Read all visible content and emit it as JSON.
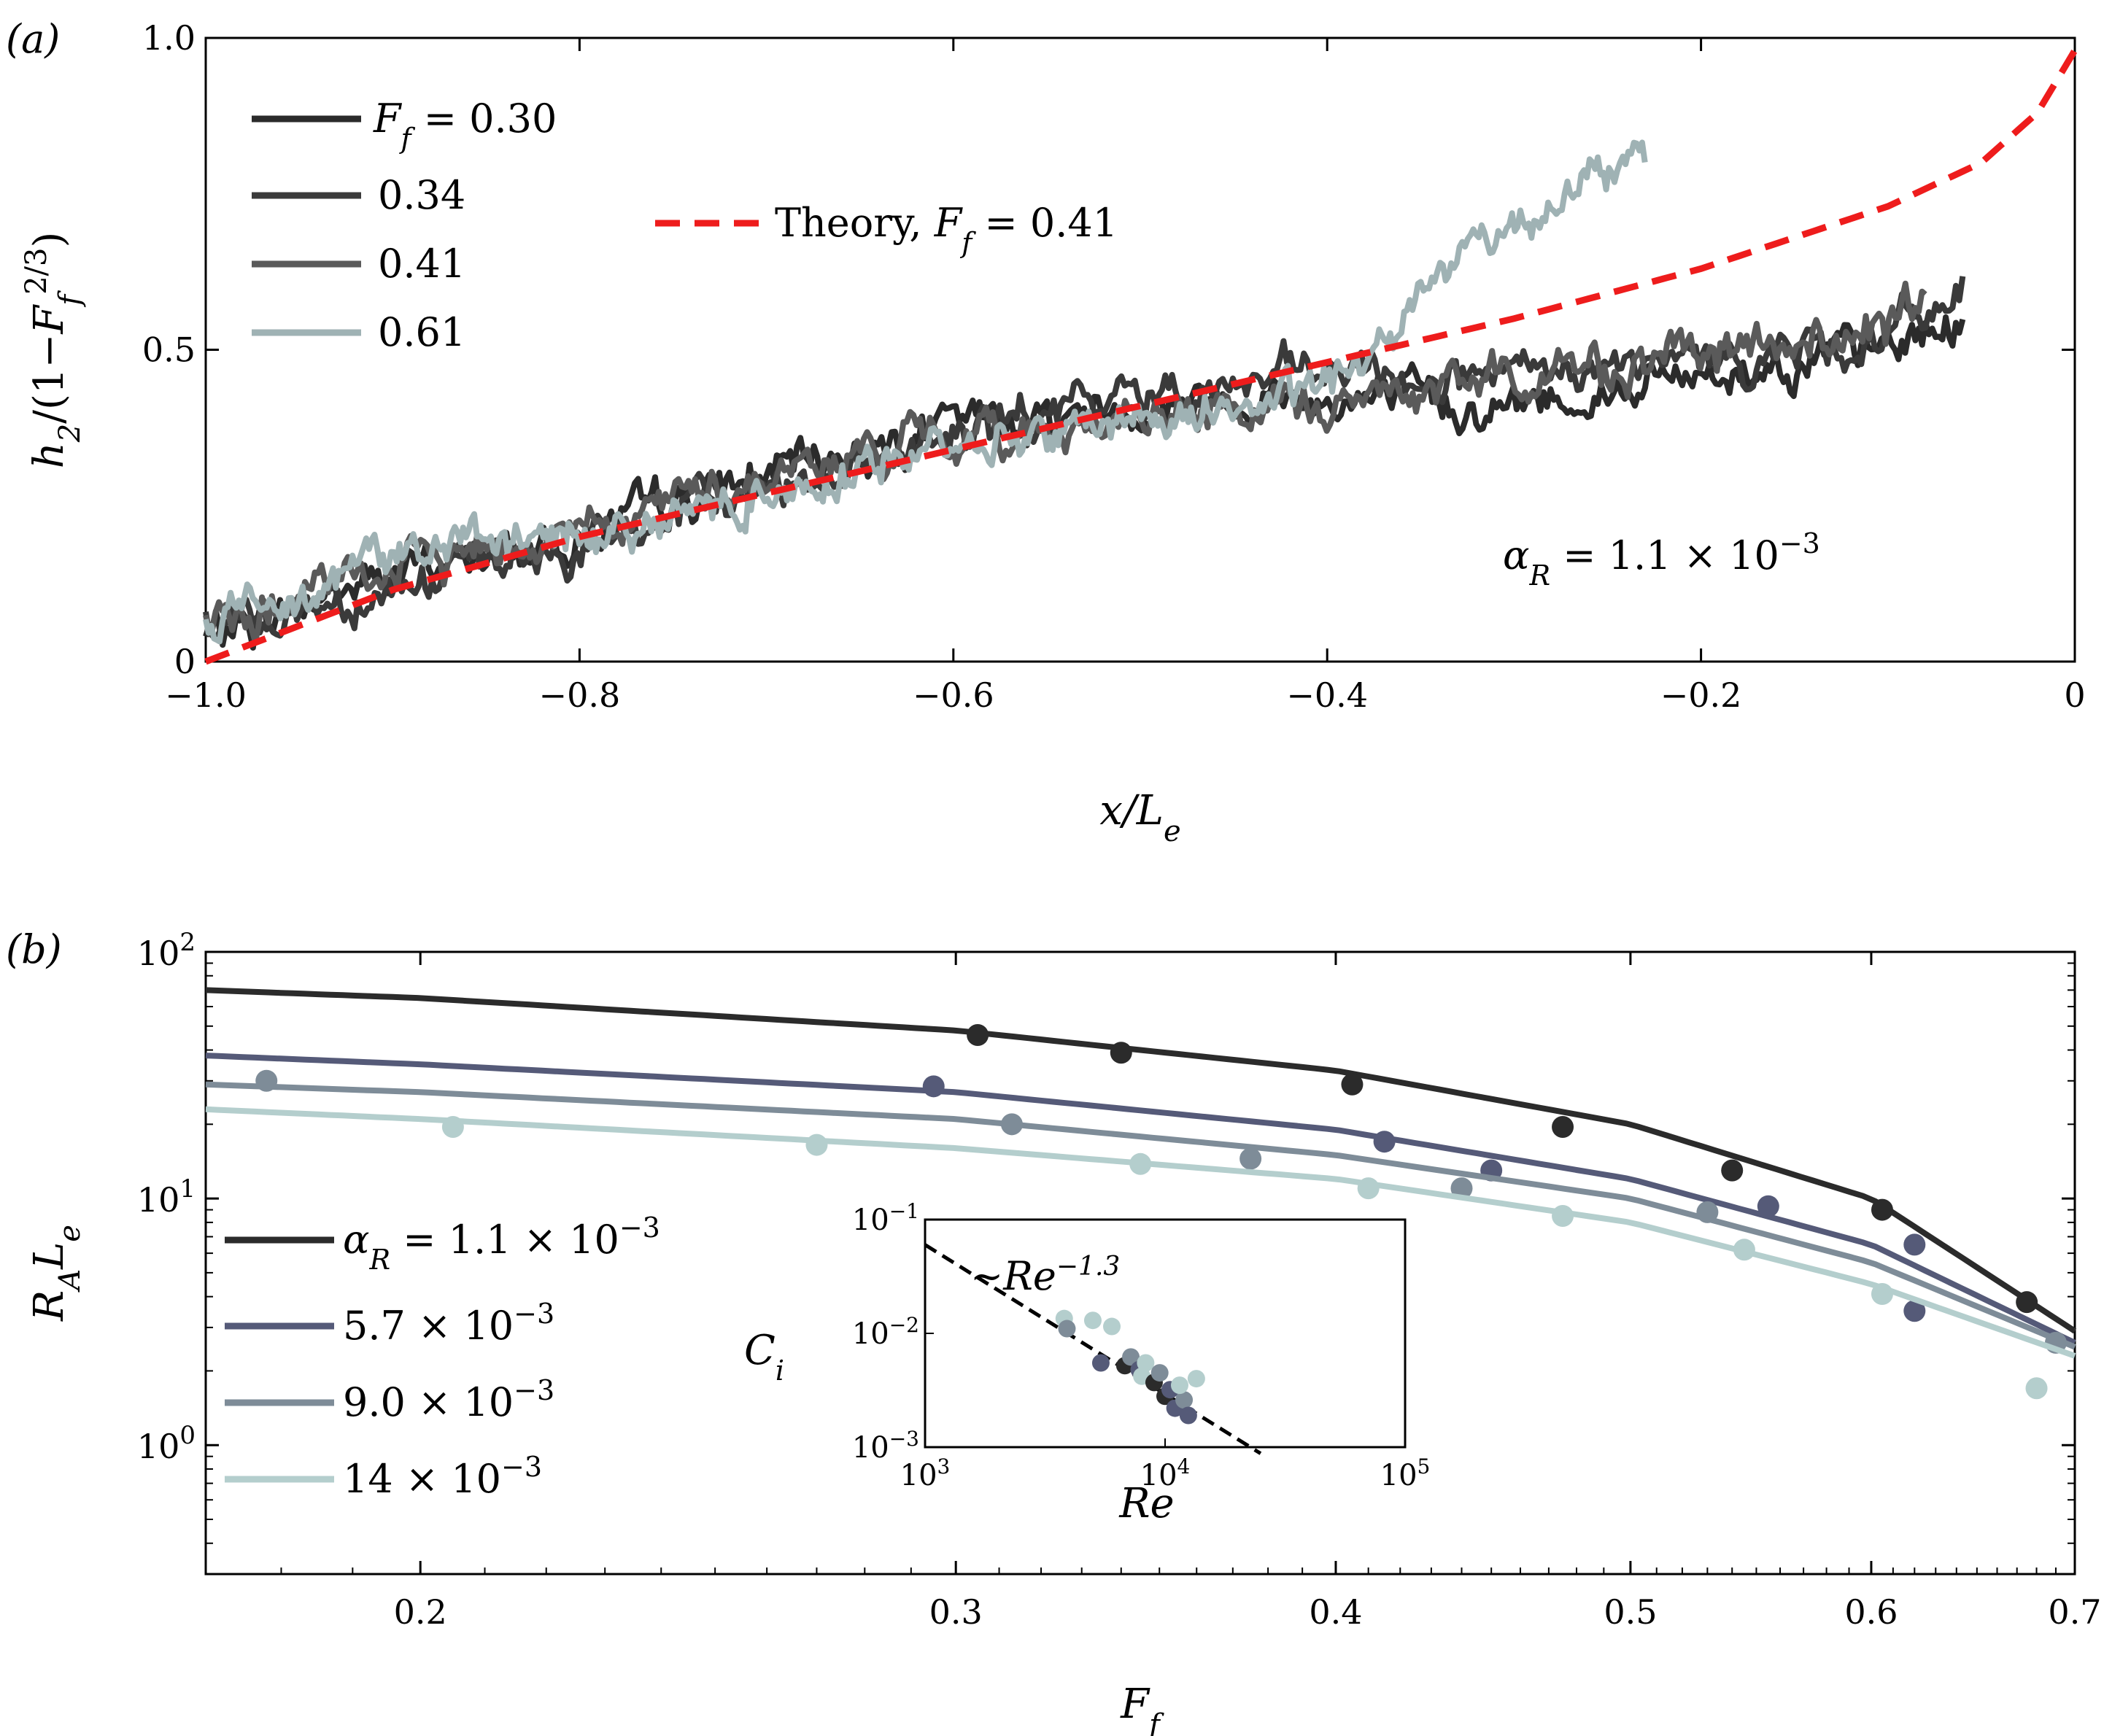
{
  "chart_data": [
    {
      "panel_label": "(a)",
      "type": "line",
      "xlabel": "x/L_e",
      "ylabel": "h_2/(1−F_f^{2/3})",
      "xlim": [
        -1.0,
        0.0
      ],
      "ylim": [
        0.0,
        1.0
      ],
      "xticks": [
        -1.0,
        -0.8,
        -0.6,
        -0.4,
        -0.2,
        0
      ],
      "xtick_labels": [
        "−1.0",
        "−0.8",
        "−0.6",
        "−0.4",
        "−0.2",
        "0"
      ],
      "yticks": [
        0,
        0.5,
        1.0
      ],
      "ytick_labels": [
        "0",
        "0.5",
        "1.0"
      ],
      "legend_title_prefix": "F_f = ",
      "annotation": "α_R = 1.1 × 10^−3",
      "series": [
        {
          "name": "F_f = 0.30",
          "legend": "0.30",
          "color": "#2b2b2b",
          "noise": 0.022,
          "points": [
            [
              -1.0,
              0.04
            ],
            [
              -0.9,
              0.14
            ],
            [
              -0.8,
              0.2
            ],
            [
              -0.7,
              0.3
            ],
            [
              -0.6,
              0.38
            ],
            [
              -0.5,
              0.41
            ],
            [
              -0.45,
              0.43
            ],
            [
              -0.4,
              0.42
            ],
            [
              -0.3,
              0.41
            ],
            [
              -0.2,
              0.46
            ],
            [
              -0.1,
              0.5
            ],
            [
              -0.06,
              0.55
            ]
          ]
        },
        {
          "name": "F_f = 0.34",
          "legend": "0.34",
          "color": "#3a3a3a",
          "noise": 0.022,
          "points": [
            [
              -1.0,
              0.05
            ],
            [
              -0.9,
              0.12
            ],
            [
              -0.8,
              0.18
            ],
            [
              -0.7,
              0.28
            ],
            [
              -0.6,
              0.36
            ],
            [
              -0.5,
              0.43
            ],
            [
              -0.4,
              0.46
            ],
            [
              -0.3,
              0.45
            ],
            [
              -0.2,
              0.48
            ],
            [
              -0.1,
              0.52
            ],
            [
              -0.06,
              0.6
            ]
          ]
        },
        {
          "name": "F_f = 0.41",
          "legend": "0.41",
          "color": "#5a5a5a",
          "noise": 0.022,
          "points": [
            [
              -1.0,
              0.05
            ],
            [
              -0.9,
              0.15
            ],
            [
              -0.8,
              0.22
            ],
            [
              -0.7,
              0.3
            ],
            [
              -0.6,
              0.36
            ],
            [
              -0.5,
              0.39
            ],
            [
              -0.4,
              0.41
            ],
            [
              -0.3,
              0.46
            ],
            [
              -0.2,
              0.49
            ],
            [
              -0.1,
              0.53
            ],
            [
              -0.08,
              0.58
            ]
          ]
        },
        {
          "name": "F_f = 0.61",
          "legend": "0.61",
          "color": "#9fb2b4",
          "noise": 0.02,
          "points": [
            [
              -1.0,
              0.06
            ],
            [
              -0.9,
              0.18
            ],
            [
              -0.8,
              0.2
            ],
            [
              -0.7,
              0.27
            ],
            [
              -0.6,
              0.35
            ],
            [
              -0.5,
              0.39
            ],
            [
              -0.42,
              0.42
            ],
            [
              -0.38,
              0.48
            ],
            [
              -0.35,
              0.6
            ],
            [
              -0.32,
              0.68
            ],
            [
              -0.3,
              0.7
            ],
            [
              -0.27,
              0.76
            ],
            [
              -0.23,
              0.8
            ]
          ]
        },
        {
          "name": "Theory, F_f = 0.41",
          "color": "#ee1c1c",
          "dashed": true,
          "points": [
            [
              -1.0,
              0.0
            ],
            [
              -0.9,
              0.115
            ],
            [
              -0.8,
              0.2
            ],
            [
              -0.7,
              0.27
            ],
            [
              -0.6,
              0.34
            ],
            [
              -0.5,
              0.41
            ],
            [
              -0.4,
              0.48
            ],
            [
              -0.3,
              0.55
            ],
            [
              -0.2,
              0.63
            ],
            [
              -0.1,
              0.73
            ],
            [
              -0.05,
              0.8
            ],
            [
              -0.02,
              0.88
            ],
            [
              0.0,
              0.98
            ]
          ]
        }
      ]
    },
    {
      "panel_label": "(b)",
      "type": "scatter",
      "xscale": "log",
      "yscale": "log",
      "xlabel": "F_f",
      "ylabel": "R_A L_e",
      "xlim": [
        0.17,
        0.7
      ],
      "ylim": [
        0.3,
        100
      ],
      "xticks": [
        0.2,
        0.3,
        0.4,
        0.5,
        0.6,
        0.7
      ],
      "xtick_labels": [
        "0.2",
        "0.3",
        "0.4",
        "0.5",
        "0.6",
        "0.7"
      ],
      "yticks": [
        1,
        10,
        100
      ],
      "ytick_labels": [
        "10^0",
        "10^1",
        "10^2"
      ],
      "series": [
        {
          "name": "α_R = 1.1 × 10^−3",
          "color": "#2b2b2b",
          "curve": [
            [
              0.17,
              70
            ],
            [
              0.2,
              65
            ],
            [
              0.3,
              48
            ],
            [
              0.4,
              33
            ],
            [
              0.5,
              20
            ],
            [
              0.6,
              10
            ],
            [
              0.7,
              2.9
            ]
          ],
          "points": [
            [
              0.305,
              46
            ],
            [
              0.34,
              39
            ],
            [
              0.405,
              29
            ],
            [
              0.475,
              19.5
            ],
            [
              0.54,
              13
            ],
            [
              0.605,
              9
            ],
            [
              0.675,
              3.8
            ]
          ]
        },
        {
          "name": "5.7 × 10^−3",
          "color": "#555a78",
          "curve": [
            [
              0.17,
              38
            ],
            [
              0.2,
              35
            ],
            [
              0.3,
              27
            ],
            [
              0.4,
              19
            ],
            [
              0.5,
              12
            ],
            [
              0.6,
              6.5
            ],
            [
              0.7,
              2.6
            ]
          ],
          "points": [
            [
              0.295,
              28.5
            ],
            [
              0.415,
              17
            ],
            [
              0.45,
              13
            ],
            [
              0.555,
              9.3
            ],
            [
              0.62,
              6.5
            ],
            [
              0.62,
              3.5
            ]
          ]
        },
        {
          "name": "9.0 × 10^−3",
          "color": "#7e8c98",
          "curve": [
            [
              0.17,
              29
            ],
            [
              0.2,
              27
            ],
            [
              0.3,
              21
            ],
            [
              0.4,
              15
            ],
            [
              0.5,
              10
            ],
            [
              0.6,
              5.5
            ],
            [
              0.7,
              2.5
            ]
          ],
          "points": [
            [
              0.178,
              30
            ],
            [
              0.313,
              20
            ],
            [
              0.375,
              14.5
            ],
            [
              0.44,
              11
            ],
            [
              0.53,
              8.8
            ],
            [
              0.69,
              2.6
            ]
          ]
        },
        {
          "name": "14 × 10^−3",
          "color": "#b4cecd",
          "curve": [
            [
              0.17,
              23
            ],
            [
              0.2,
              21
            ],
            [
              0.3,
              16
            ],
            [
              0.4,
              12
            ],
            [
              0.5,
              8
            ],
            [
              0.6,
              4.5
            ],
            [
              0.7,
              2.3
            ]
          ],
          "points": [
            [
              0.205,
              19.5
            ],
            [
              0.27,
              16.5
            ],
            [
              0.345,
              13.8
            ],
            [
              0.41,
              11
            ],
            [
              0.475,
              8.5
            ],
            [
              0.545,
              6.2
            ],
            [
              0.605,
              4.1
            ],
            [
              0.68,
              1.7
            ]
          ]
        }
      ],
      "inset": {
        "type": "scatter",
        "xscale": "log",
        "yscale": "log",
        "xlabel": "Re",
        "ylabel": "C_i",
        "xlim": [
          1000,
          100000
        ],
        "ylim": [
          0.001,
          0.1
        ],
        "xtick_labels": [
          "10^3",
          "10^4",
          "10^5"
        ],
        "ytick_labels": [
          "10^−1",
          "10^−2",
          "10^−3"
        ],
        "fit_label": "~Re^{−1.3}",
        "fit_line": [
          [
            1000,
            0.06
          ],
          [
            25000,
            0.00088
          ]
        ],
        "points": [
          {
            "x": 3800,
            "y": 0.0135,
            "color": "#b4cecd"
          },
          {
            "x": 3900,
            "y": 0.011,
            "color": "#7e8c98"
          },
          {
            "x": 5000,
            "y": 0.013,
            "color": "#b4cecd"
          },
          {
            "x": 6000,
            "y": 0.0115,
            "color": "#b4cecd"
          },
          {
            "x": 5400,
            "y": 0.0055,
            "color": "#555a78"
          },
          {
            "x": 6800,
            "y": 0.0052,
            "color": "#2b2b2b"
          },
          {
            "x": 7200,
            "y": 0.0062,
            "color": "#7e8c98"
          },
          {
            "x": 7800,
            "y": 0.0048,
            "color": "#555a78"
          },
          {
            "x": 8300,
            "y": 0.0055,
            "color": "#b4cecd"
          },
          {
            "x": 8000,
            "y": 0.0042,
            "color": "#b4cecd"
          },
          {
            "x": 9000,
            "y": 0.0037,
            "color": "#2b2b2b"
          },
          {
            "x": 9500,
            "y": 0.0045,
            "color": "#7e8c98"
          },
          {
            "x": 10000,
            "y": 0.0028,
            "color": "#2b2b2b"
          },
          {
            "x": 10500,
            "y": 0.0032,
            "color": "#555a78"
          },
          {
            "x": 11000,
            "y": 0.0022,
            "color": "#555a78"
          },
          {
            "x": 12000,
            "y": 0.0026,
            "color": "#7e8c98"
          },
          {
            "x": 12500,
            "y": 0.0019,
            "color": "#555a78"
          },
          {
            "x": 13500,
            "y": 0.004,
            "color": "#b4cecd"
          },
          {
            "x": 11500,
            "y": 0.0035,
            "color": "#b4cecd"
          }
        ]
      }
    }
  ]
}
